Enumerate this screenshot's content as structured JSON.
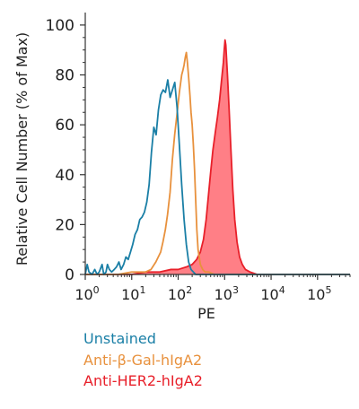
{
  "chart_data": {
    "type": "area",
    "xlabel": "PE",
    "ylabel": "Relative Cell Number (% of Max)",
    "x_scale": "log",
    "xlim": [
      1,
      500000
    ],
    "ylim": [
      0,
      105
    ],
    "x_ticks": [
      {
        "value": 1,
        "base": "10",
        "exp": "0"
      },
      {
        "value": 10,
        "base": "10",
        "exp": "1"
      },
      {
        "value": 100,
        "base": "10",
        "exp": "2"
      },
      {
        "value": 1000,
        "base": "10",
        "exp": "3"
      },
      {
        "value": 10000,
        "base": "10",
        "exp": "4"
      },
      {
        "value": 100000,
        "base": "10",
        "exp": "5"
      }
    ],
    "y_ticks": [
      0,
      20,
      40,
      60,
      80,
      100
    ],
    "grid": false,
    "legend_position": "bottom-left",
    "series": [
      {
        "name": "Unstained",
        "color": "#1a7fa6",
        "fill": "none",
        "points": [
          [
            1,
            0
          ],
          [
            1.1,
            4
          ],
          [
            1.2,
            1
          ],
          [
            1.4,
            0
          ],
          [
            1.6,
            2
          ],
          [
            1.8,
            0
          ],
          [
            2.0,
            1
          ],
          [
            2.3,
            4
          ],
          [
            2.5,
            0
          ],
          [
            2.8,
            1
          ],
          [
            3.0,
            4
          ],
          [
            3.3,
            2
          ],
          [
            3.7,
            1
          ],
          [
            4.2,
            2
          ],
          [
            4.7,
            3
          ],
          [
            5.3,
            5
          ],
          [
            5.9,
            2
          ],
          [
            6.7,
            4
          ],
          [
            7.5,
            7
          ],
          [
            8.4,
            6
          ],
          [
            9.4,
            9
          ],
          [
            10.5,
            12
          ],
          [
            11.8,
            16
          ],
          [
            13.3,
            18
          ],
          [
            14.9,
            22
          ],
          [
            16.7,
            23
          ],
          [
            18.8,
            25
          ],
          [
            21.1,
            29
          ],
          [
            23.7,
            36
          ],
          [
            26.6,
            49
          ],
          [
            29.9,
            59
          ],
          [
            33.5,
            56
          ],
          [
            37.6,
            66
          ],
          [
            42.2,
            72
          ],
          [
            47.4,
            74
          ],
          [
            53.2,
            73
          ],
          [
            59.7,
            78
          ],
          [
            67.0,
            71
          ],
          [
            75.2,
            74
          ],
          [
            84.4,
            77
          ],
          [
            94.7,
            67
          ],
          [
            106,
            52
          ],
          [
            119,
            36
          ],
          [
            134,
            22
          ],
          [
            150,
            12
          ],
          [
            168,
            5
          ],
          [
            189,
            2
          ],
          [
            212,
            1
          ],
          [
            238,
            0
          ],
          [
            500000,
            0
          ]
        ]
      },
      {
        "name": "Anti-β-Gal-hIgA2",
        "color": "#e8913d",
        "fill": "none",
        "points": [
          [
            1,
            0
          ],
          [
            5,
            0
          ],
          [
            10,
            1
          ],
          [
            14,
            1
          ],
          [
            20,
            1
          ],
          [
            26,
            2
          ],
          [
            33,
            5
          ],
          [
            42,
            9
          ],
          [
            47,
            13
          ],
          [
            53,
            18
          ],
          [
            59,
            24
          ],
          [
            67,
            33
          ],
          [
            75,
            46
          ],
          [
            84,
            56
          ],
          [
            94,
            64
          ],
          [
            106,
            73
          ],
          [
            119,
            80
          ],
          [
            127,
            82
          ],
          [
            134,
            84
          ],
          [
            142,
            87
          ],
          [
            150,
            89
          ],
          [
            158,
            85
          ],
          [
            168,
            79
          ],
          [
            179,
            72
          ],
          [
            189,
            65
          ],
          [
            200,
            60
          ],
          [
            212,
            52
          ],
          [
            225,
            42
          ],
          [
            238,
            30
          ],
          [
            252,
            18
          ],
          [
            268,
            10
          ],
          [
            300,
            4
          ],
          [
            337,
            2
          ],
          [
            380,
            1
          ],
          [
            450,
            1
          ],
          [
            600,
            0
          ],
          [
            500000,
            0
          ]
        ]
      },
      {
        "name": "Anti-HER2-hIgA2",
        "color": "#e8202a",
        "fill": "#ff7f86",
        "points": [
          [
            1,
            0
          ],
          [
            10,
            0
          ],
          [
            20,
            1
          ],
          [
            40,
            1
          ],
          [
            70,
            2
          ],
          [
            100,
            2
          ],
          [
            150,
            3
          ],
          [
            200,
            4
          ],
          [
            250,
            6
          ],
          [
            300,
            9
          ],
          [
            350,
            14
          ],
          [
            400,
            22
          ],
          [
            450,
            32
          ],
          [
            500,
            41
          ],
          [
            560,
            50
          ],
          [
            630,
            57
          ],
          [
            700,
            63
          ],
          [
            780,
            70
          ],
          [
            860,
            78
          ],
          [
            940,
            85
          ],
          [
            980,
            90
          ],
          [
            1020,
            94
          ],
          [
            1060,
            92
          ],
          [
            1150,
            80
          ],
          [
            1250,
            66
          ],
          [
            1350,
            52
          ],
          [
            1500,
            34
          ],
          [
            1650,
            22
          ],
          [
            1850,
            13
          ],
          [
            2100,
            7
          ],
          [
            2400,
            4
          ],
          [
            2800,
            2
          ],
          [
            3500,
            1
          ],
          [
            5000,
            0
          ],
          [
            500000,
            0
          ]
        ]
      }
    ]
  }
}
